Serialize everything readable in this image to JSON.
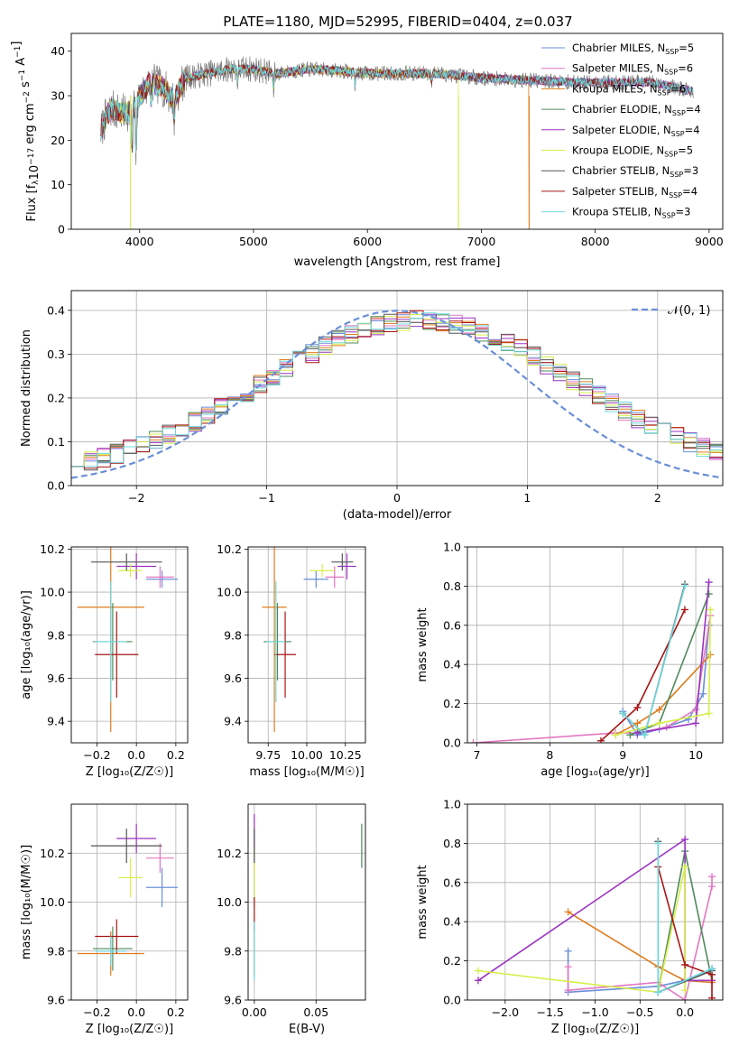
{
  "figure": {
    "title": "PLATE=1180, MJD=52995, FIBERID=0404, z=0.037"
  },
  "colors": {
    "Chabrier MILES": "#6A8FD8",
    "Salpeter MILES": "#E377C2",
    "Kroupa MILES": "#E07B1E",
    "Chabrier ELODIE": "#4F8A5B",
    "Salpeter ELODIE": "#9B33C2",
    "Kroupa ELODIE": "#D7EE4A",
    "Chabrier STELIB": "#555555",
    "Salpeter STELIB": "#A81515",
    "Kroupa STELIB": "#6ED8DC",
    "normal_curve": "#6A8FD8",
    "grid": "#b0b0b0"
  },
  "chart_data": [
    {
      "id": "spectrum",
      "type": "line",
      "title": "PLATE=1180, MJD=52995, FIBERID=0404, z=0.037",
      "xlabel": "wavelength [Angstrom, rest frame]",
      "ylabel_parts": [
        "Flux [f",
        "λ",
        "10",
        "−17",
        " erg cm",
        "−2",
        " s",
        "−1",
        " A",
        "−1",
        "]"
      ],
      "xlim": [
        3400,
        9120
      ],
      "ylim": [
        0,
        44
      ],
      "xticks": [
        4000,
        5000,
        6000,
        7000,
        8000,
        9000
      ],
      "yticks": [
        0,
        10,
        20,
        30,
        40
      ],
      "grid": false,
      "legend_position": "right",
      "legend": [
        {
          "model": "Chabrier MILES",
          "label": "Chabrier MILES, N",
          "sub": "SSP",
          "n": "=5"
        },
        {
          "model": "Salpeter MILES",
          "label": "Salpeter MILES, N",
          "sub": "SSP",
          "n": "=6"
        },
        {
          "model": "Kroupa MILES",
          "label": "Kroupa MILES, N",
          "sub": "SSP",
          "n": "=6"
        },
        {
          "model": "Chabrier ELODIE",
          "label": "Chabrier ELODIE, N",
          "sub": "SSP",
          "n": "=4"
        },
        {
          "model": "Salpeter ELODIE",
          "label": "Salpeter ELODIE, N",
          "sub": "SSP",
          "n": "=4"
        },
        {
          "model": "Kroupa ELODIE",
          "label": "Kroupa ELODIE, N",
          "sub": "SSP",
          "n": "=5"
        },
        {
          "model": "Chabrier STELIB",
          "label": "Chabrier STELIB, N",
          "sub": "SSP",
          "n": "=3"
        },
        {
          "model": "Salpeter STELIB",
          "label": "Salpeter STELIB, N",
          "sub": "SSP",
          "n": "=4"
        },
        {
          "model": "Kroupa STELIB",
          "label": "Kroupa STELIB, N",
          "sub": "SSP",
          "n": "=3"
        }
      ],
      "continuum": [
        [
          3660,
          22
        ],
        [
          3700,
          25
        ],
        [
          3750,
          27
        ],
        [
          3850,
          26
        ],
        [
          3950,
          27
        ],
        [
          4000,
          30
        ],
        [
          4100,
          33
        ],
        [
          4200,
          32
        ],
        [
          4300,
          29
        ],
        [
          4400,
          34
        ],
        [
          4600,
          35
        ],
        [
          4800,
          36
        ],
        [
          5000,
          36
        ],
        [
          5200,
          35
        ],
        [
          5500,
          36
        ],
        [
          5800,
          35.5
        ],
        [
          6000,
          35
        ],
        [
          6300,
          35
        ],
        [
          6600,
          35
        ],
        [
          7000,
          34
        ],
        [
          7400,
          33.5
        ],
        [
          7800,
          33
        ],
        [
          8200,
          33
        ],
        [
          8500,
          33
        ],
        [
          8860,
          31
        ]
      ],
      "absorption_features": [
        [
          3934,
          10
        ],
        [
          3969,
          12
        ],
        [
          4102,
          4
        ],
        [
          4304,
          5
        ],
        [
          4861,
          3
        ],
        [
          5175,
          4
        ],
        [
          5893,
          3
        ],
        [
          6563,
          2
        ]
      ],
      "data_range": [
        3660,
        8860
      ],
      "model_range": [
        3660,
        8860
      ],
      "model_cutoffs": {
        "Kroupa MILES": 7420,
        "Kroupa ELODIE": 6800
      },
      "line_spikes": [
        {
          "wavelength": 3920,
          "flux": 0,
          "model": "Kroupa ELODIE"
        },
        {
          "wavelength": 6800,
          "flux": 0,
          "model": "Kroupa ELODIE"
        },
        {
          "wavelength": 7420,
          "flux": 0,
          "model": "Kroupa MILES"
        }
      ]
    },
    {
      "id": "residuals",
      "type": "histogram",
      "xlabel": "(data-model)/error",
      "ylabel": "Normed distribution",
      "xlim": [
        -2.5,
        2.5
      ],
      "ylim": [
        0,
        0.445
      ],
      "xticks": [
        -2,
        -1,
        0,
        1,
        2
      ],
      "xticklabels": [
        "−2",
        "−1",
        "0",
        "1",
        "2"
      ],
      "yticks": [
        0,
        0.1,
        0.2,
        0.3,
        0.4
      ],
      "yticklabels": [
        "0.0",
        "0.1",
        "0.2",
        "0.3",
        "0.4"
      ],
      "grid": true,
      "bin_width": 0.1,
      "bin_start": -2.5,
      "center_peak": 0.36,
      "spread": 1.05,
      "shift": 0.18,
      "legend_position": "top-right",
      "normal_curve": {
        "label": "𝒩(0, 1)",
        "mean": 0,
        "sigma": 1
      }
    },
    {
      "id": "age_vs_Z",
      "type": "errorbar",
      "xlabel": "Z [log₁₀(Z/Z☉)]",
      "ylabel": "age  [log₁₀(age/yr)]",
      "xlim": [
        -0.33,
        0.26
      ],
      "ylim": [
        9.3,
        10.21
      ],
      "xticks": [
        -0.2,
        0.0,
        0.2
      ],
      "xticklabels": [
        "−0.2",
        "0.0",
        "0.2"
      ],
      "yticks": [
        9.4,
        9.6,
        9.8,
        10.0,
        10.2
      ],
      "yticklabels": [
        "9.4",
        "9.6",
        "9.8",
        "10.0",
        "10.2"
      ],
      "grid": true,
      "points": [
        {
          "model": "Chabrier MILES",
          "x": 0.13,
          "y": 10.06,
          "xerr": 0.08,
          "yerr": 0.04
        },
        {
          "model": "Salpeter MILES",
          "x": 0.12,
          "y": 10.07,
          "xerr": 0.07,
          "yerr": 0.05
        },
        {
          "model": "Kroupa MILES",
          "x": -0.13,
          "y": 9.93,
          "xerr": 0.17,
          "yerr": 0.58
        },
        {
          "model": "Chabrier ELODIE",
          "x": -0.12,
          "y": 9.77,
          "xerr": 0.1,
          "yerr": 0.18
        },
        {
          "model": "Salpeter ELODIE",
          "x": 0.0,
          "y": 10.12,
          "xerr": 0.1,
          "yerr": 0.06
        },
        {
          "model": "Kroupa ELODIE",
          "x": -0.03,
          "y": 10.1,
          "xerr": 0.06,
          "yerr": 0.03
        },
        {
          "model": "Chabrier STELIB",
          "x": -0.05,
          "y": 10.14,
          "xerr": 0.18,
          "yerr": 0.04
        },
        {
          "model": "Salpeter STELIB",
          "x": -0.1,
          "y": 9.71,
          "xerr": 0.11,
          "yerr": 0.2
        },
        {
          "model": "Kroupa STELIB",
          "x": -0.13,
          "y": 9.77,
          "xerr": 0.08,
          "yerr": 0.28
        }
      ]
    },
    {
      "id": "age_vs_mass",
      "type": "errorbar",
      "xlabel": "mass [log₁₀(M/M☉)]",
      "ylabel": "",
      "xlim": [
        9.62,
        10.38
      ],
      "ylim": [
        9.3,
        10.21
      ],
      "xticks": [
        9.75,
        10.0,
        10.25
      ],
      "xticklabels": [
        "9.75",
        "10.00",
        "10.25"
      ],
      "yticks": [
        9.4,
        9.6,
        9.8,
        10.0,
        10.2
      ],
      "yticklabels": [
        "9.4",
        "9.6",
        "9.8",
        "10.0",
        "10.2"
      ],
      "grid": true,
      "points": [
        {
          "model": "Chabrier MILES",
          "x": 10.06,
          "y": 10.06,
          "xerr": 0.08,
          "yerr": 0.04
        },
        {
          "model": "Salpeter MILES",
          "x": 10.18,
          "y": 10.07,
          "xerr": 0.06,
          "yerr": 0.05
        },
        {
          "model": "Kroupa MILES",
          "x": 9.79,
          "y": 9.93,
          "xerr": 0.08,
          "yerr": 0.58
        },
        {
          "model": "Chabrier ELODIE",
          "x": 9.81,
          "y": 9.77,
          "xerr": 0.09,
          "yerr": 0.18
        },
        {
          "model": "Salpeter ELODIE",
          "x": 10.26,
          "y": 10.12,
          "xerr": 0.06,
          "yerr": 0.06
        },
        {
          "model": "Kroupa ELODIE",
          "x": 10.1,
          "y": 10.1,
          "xerr": 0.08,
          "yerr": 0.03
        },
        {
          "model": "Chabrier STELIB",
          "x": 10.23,
          "y": 10.14,
          "xerr": 0.07,
          "yerr": 0.04
        },
        {
          "model": "Salpeter STELIB",
          "x": 9.86,
          "y": 9.71,
          "xerr": 0.07,
          "yerr": 0.2
        },
        {
          "model": "Kroupa STELIB",
          "x": 9.8,
          "y": 9.77,
          "xerr": 0.06,
          "yerr": 0.28
        }
      ]
    },
    {
      "id": "weight_vs_age",
      "type": "line",
      "xlabel": "age  [log₁₀(age/yr)]",
      "ylabel": "mass weight",
      "xlim": [
        6.87,
        10.37
      ],
      "ylim": [
        0,
        1
      ],
      "xticks": [
        7,
        8,
        9,
        10
      ],
      "xticklabels": [
        "7",
        "8",
        "9",
        "10"
      ],
      "yticks": [
        0,
        0.2,
        0.4,
        0.6,
        0.8,
        1.0
      ],
      "yticklabels": [
        "0.0",
        "0.2",
        "0.4",
        "0.6",
        "0.8",
        "1.0"
      ],
      "grid": true,
      "series": [
        {
          "model": "Chabrier MILES",
          "x": [
            9.0,
            9.2,
            9.5,
            9.9,
            10.1,
            10.18
          ],
          "y": [
            0.16,
            0.04,
            0.07,
            0.12,
            0.25,
            0.6
          ]
        },
        {
          "model": "Salpeter MILES",
          "x": [
            6.95,
            8.9,
            9.2,
            9.6,
            10.0,
            10.2
          ],
          "y": [
            0.0,
            0.05,
            0.05,
            0.08,
            0.17,
            0.65
          ]
        },
        {
          "model": "Kroupa MILES",
          "x": [
            8.9,
            9.2,
            9.5,
            10.2
          ],
          "y": [
            0.04,
            0.1,
            0.17,
            0.45
          ]
        },
        {
          "model": "Chabrier ELODIE",
          "x": [
            9.1,
            9.5,
            10.18
          ],
          "y": [
            0.04,
            0.1,
            0.76
          ]
        },
        {
          "model": "Salpeter ELODIE",
          "x": [
            9.2,
            10.0,
            10.18
          ],
          "y": [
            0.05,
            0.1,
            0.82
          ]
        },
        {
          "model": "Kroupa ELODIE",
          "x": [
            8.9,
            9.5,
            10.18,
            10.2
          ],
          "y": [
            0.04,
            0.1,
            0.15,
            0.68
          ]
        },
        {
          "model": "Chabrier STELIB",
          "x": [
            9.0,
            9.3,
            9.85
          ],
          "y": [
            0.15,
            0.04,
            0.81
          ]
        },
        {
          "model": "Salpeter STELIB",
          "x": [
            8.7,
            9.2,
            9.85
          ],
          "y": [
            0.01,
            0.18,
            0.68
          ]
        },
        {
          "model": "Kroupa STELIB",
          "x": [
            9.0,
            9.3,
            9.85
          ],
          "y": [
            0.15,
            0.04,
            0.8
          ]
        }
      ]
    },
    {
      "id": "mass_vs_Z",
      "type": "errorbar",
      "xlabel": "Z [log₁₀(Z/Z☉)]",
      "ylabel": "mass [log₁₀(M/M☉)]",
      "xlim": [
        -0.33,
        0.26
      ],
      "ylim": [
        9.6,
        10.4
      ],
      "xticks": [
        -0.2,
        0.0,
        0.2
      ],
      "xticklabels": [
        "−0.2",
        "0.0",
        "0.2"
      ],
      "yticks": [
        9.6,
        9.8,
        10.0,
        10.2
      ],
      "yticklabels": [
        "9.6",
        "9.8",
        "10.0",
        "10.2"
      ],
      "grid": true,
      "points": [
        {
          "model": "Chabrier MILES",
          "x": 0.13,
          "y": 10.06,
          "xerr": 0.08,
          "yerr": 0.08
        },
        {
          "model": "Salpeter MILES",
          "x": 0.12,
          "y": 10.18,
          "xerr": 0.07,
          "yerr": 0.06
        },
        {
          "model": "Kroupa MILES",
          "x": -0.13,
          "y": 9.79,
          "xerr": 0.17,
          "yerr": 0.09
        },
        {
          "model": "Chabrier ELODIE",
          "x": -0.12,
          "y": 9.81,
          "xerr": 0.1,
          "yerr": 0.09
        },
        {
          "model": "Salpeter ELODIE",
          "x": 0.0,
          "y": 10.26,
          "xerr": 0.1,
          "yerr": 0.06
        },
        {
          "model": "Kroupa ELODIE",
          "x": -0.03,
          "y": 10.1,
          "xerr": 0.06,
          "yerr": 0.08
        },
        {
          "model": "Chabrier STELIB",
          "x": -0.05,
          "y": 10.23,
          "xerr": 0.18,
          "yerr": 0.07
        },
        {
          "model": "Salpeter STELIB",
          "x": -0.1,
          "y": 9.86,
          "xerr": 0.11,
          "yerr": 0.07
        },
        {
          "model": "Kroupa STELIB",
          "x": -0.13,
          "y": 9.8,
          "xerr": 0.08,
          "yerr": 0.06
        }
      ]
    },
    {
      "id": "mass_vs_ebv",
      "type": "errorbar",
      "xlabel": "E(B-V)",
      "ylabel": "",
      "xlim": [
        -0.005,
        0.09
      ],
      "ylim": [
        9.6,
        10.4
      ],
      "xticks": [
        0.0,
        0.05
      ],
      "xticklabels": [
        "0.00",
        "0.05"
      ],
      "yticks": [
        9.6,
        9.8,
        10.0,
        10.2
      ],
      "yticklabels": [
        "9.6",
        "9.8",
        "10.0",
        "10.2"
      ],
      "grid": true,
      "points": [
        {
          "model": "Chabrier MILES",
          "x": 0.0,
          "y": 10.06,
          "xerr": 0,
          "yerr": 0.08
        },
        {
          "model": "Salpeter MILES",
          "x": 0.0,
          "y": 10.18,
          "xerr": 0,
          "yerr": 0.06
        },
        {
          "model": "Kroupa MILES",
          "x": 0.0,
          "y": 9.79,
          "xerr": 0,
          "yerr": 0.09
        },
        {
          "model": "Chabrier ELODIE",
          "x": 0.087,
          "y": 10.23,
          "xerr": 0,
          "yerr": 0.09
        },
        {
          "model": "Salpeter ELODIE",
          "x": 0.0,
          "y": 10.26,
          "xerr": 0,
          "yerr": 0.1
        },
        {
          "model": "Kroupa ELODIE",
          "x": 0.0,
          "y": 10.1,
          "xerr": 0,
          "yerr": 0.12
        },
        {
          "model": "Chabrier STELIB",
          "x": 0.0,
          "y": 10.23,
          "xerr": 0,
          "yerr": 0.07
        },
        {
          "model": "Salpeter STELIB",
          "x": 0.0,
          "y": 9.95,
          "xerr": 0,
          "yerr": 0.07
        },
        {
          "model": "Kroupa STELIB",
          "x": 0.0,
          "y": 9.8,
          "xerr": 0,
          "yerr": 0.12
        }
      ]
    },
    {
      "id": "weight_vs_Z",
      "type": "line",
      "xlabel": "Z [log₁₀(Z/Z☉)]",
      "ylabel": "mass weight",
      "xlim": [
        -2.42,
        0.42
      ],
      "ylim": [
        0,
        1
      ],
      "xticks": [
        -2.0,
        -1.5,
        -1.0,
        -0.5,
        0.0
      ],
      "xticklabels": [
        "−2.0",
        "−1.5",
        "−1.0",
        "−0.5",
        "0.0"
      ],
      "yticks": [
        0,
        0.2,
        0.4,
        0.6,
        0.8,
        1.0
      ],
      "yticklabels": [
        "0.0",
        "0.2",
        "0.4",
        "0.6",
        "0.8",
        "1.0"
      ],
      "grid": true,
      "series": [
        {
          "model": "Chabrier MILES",
          "x": [
            -1.3,
            -1.3,
            -0.3,
            0.0,
            0.3
          ],
          "y": [
            0.25,
            0.04,
            0.07,
            0.1,
            0.16
          ]
        },
        {
          "model": "Salpeter MILES",
          "x": [
            -1.3,
            -1.3,
            -0.3,
            0.0,
            0.3,
            0.3
          ],
          "y": [
            0.17,
            0.05,
            0.09,
            0.0,
            0.58,
            0.63
          ]
        },
        {
          "model": "Kroupa MILES",
          "x": [
            -1.3,
            -0.3,
            0.0,
            0.3
          ],
          "y": [
            0.45,
            0.17,
            0.1,
            0.09
          ]
        },
        {
          "model": "Chabrier ELODIE",
          "x": [
            -0.3,
            0.0,
            0.3
          ],
          "y": [
            0.04,
            0.76,
            0.1
          ]
        },
        {
          "model": "Salpeter ELODIE",
          "x": [
            -2.3,
            0.0,
            0.0,
            0.3
          ],
          "y": [
            0.1,
            0.82,
            0.1,
            0.1
          ]
        },
        {
          "model": "Kroupa ELODIE",
          "x": [
            -2.3,
            -0.3,
            0.0,
            0.0
          ],
          "y": [
            0.15,
            0.04,
            0.68,
            0.05
          ]
        },
        {
          "model": "Chabrier STELIB",
          "x": [
            -0.3,
            -0.3,
            0.3
          ],
          "y": [
            0.81,
            0.04,
            0.15
          ]
        },
        {
          "model": "Salpeter STELIB",
          "x": [
            -0.3,
            0.0,
            0.3,
            0.3
          ],
          "y": [
            0.68,
            0.18,
            0.13,
            0.01
          ]
        },
        {
          "model": "Kroupa STELIB",
          "x": [
            -0.3,
            -0.3,
            0.3
          ],
          "y": [
            0.8,
            0.04,
            0.16
          ]
        }
      ]
    }
  ]
}
